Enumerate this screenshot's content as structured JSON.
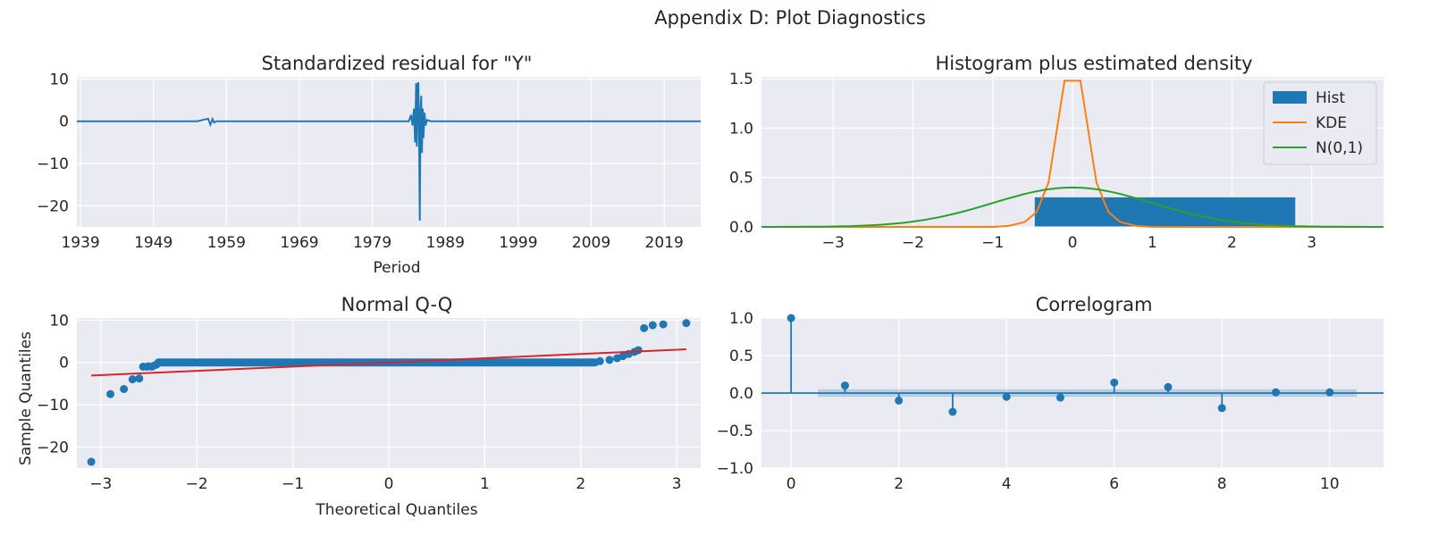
{
  "suptitle": "Appendix D: Plot Diagnostics",
  "colors": {
    "background": "#eaeaf2",
    "grid": "#ffffff",
    "blue": "#1f77b4",
    "orange": "#ff7f0e",
    "green": "#2ca02c",
    "red": "#d62728",
    "text": "#262626"
  },
  "chart_data": [
    {
      "type": "line",
      "title": "Standardized residual for \"Y\"",
      "xlabel": "Period",
      "ylabel": "",
      "xlim": [
        1938.5,
        2024
      ],
      "ylim": [
        -25,
        10.5
      ],
      "xticks": [
        1939,
        1949,
        1959,
        1969,
        1979,
        1989,
        1999,
        2009,
        2019
      ],
      "yticks": [
        10,
        0,
        -10,
        -20
      ],
      "ytick_labels": [
        "10",
        "0",
        "−10",
        "−20"
      ],
      "grid": true,
      "series": [
        {
          "x": [
            1938.5,
            1955,
            1956.5,
            1956.8,
            1957.1,
            1957.3,
            1957.6,
            1980,
            1984.0,
            1984.3,
            1984.5,
            1984.7,
            1984.85,
            1985.0,
            1985.1,
            1985.2,
            1985.3,
            1985.4,
            1985.5,
            1985.6,
            1985.7,
            1985.8,
            1985.9,
            1986.0,
            1986.15,
            1986.3,
            1986.5,
            1987,
            2024
          ],
          "y": [
            0,
            0,
            0.6,
            -0.8,
            0.5,
            -0.3,
            0,
            0,
            0,
            1.5,
            -1.0,
            3.0,
            -5.0,
            9.0,
            -6.0,
            8.5,
            9.2,
            -3.5,
            -23.5,
            2.5,
            6.0,
            -7.5,
            3.0,
            -4.0,
            2.0,
            -1.0,
            0.3,
            0,
            0
          ]
        }
      ]
    },
    {
      "type": "bar",
      "title": "Histogram plus estimated density",
      "xlim": [
        -3.9,
        3.9
      ],
      "ylim": [
        0,
        1.52
      ],
      "xticks": [
        -3,
        -2,
        -1,
        0,
        1,
        2,
        3
      ],
      "xtick_labels": [
        "−3",
        "−2",
        "−1",
        "0",
        "1",
        "2",
        "3"
      ],
      "yticks": [
        0.0,
        0.5,
        1.0,
        1.5
      ],
      "ytick_labels": [
        "0.0",
        "0.5",
        "1.0",
        "1.5"
      ],
      "grid": true,
      "legend": {
        "placement": "top-right",
        "entries": [
          "Hist",
          "KDE",
          "N(0,1)"
        ]
      },
      "hist": {
        "bins": [
          [
            -0.48,
            2.8
          ]
        ],
        "values": [
          0.305
        ]
      },
      "kde": {
        "x": [
          -3.9,
          -1.0,
          -0.8,
          -0.6,
          -0.45,
          -0.3,
          -0.1,
          0.1,
          0.3,
          0.45,
          0.6,
          0.8,
          1.0,
          3.9
        ],
        "y": [
          0.0,
          0.0,
          0.01,
          0.05,
          0.15,
          0.45,
          1.48,
          1.48,
          0.45,
          0.15,
          0.05,
          0.01,
          0.0,
          0.0
        ]
      },
      "normal": {
        "mean": 0,
        "std": 1
      }
    },
    {
      "type": "scatter",
      "title": "Normal Q-Q",
      "xlabel": "Theoretical Quantiles",
      "ylabel": "Sample Quantiles",
      "xlim": [
        -3.25,
        3.25
      ],
      "ylim": [
        -25,
        10.5
      ],
      "xticks": [
        -3,
        -2,
        -1,
        0,
        1,
        2,
        3
      ],
      "xtick_labels": [
        "−3",
        "−2",
        "−1",
        "0",
        "1",
        "2",
        "3"
      ],
      "yticks": [
        10,
        0,
        -10,
        -20
      ],
      "ytick_labels": [
        "10",
        "0",
        "−10",
        "−20"
      ],
      "grid": true,
      "points": {
        "x": [
          -3.1,
          -2.9,
          -2.76,
          -2.67,
          -2.6,
          -2.56,
          -2.52,
          -2.5,
          -2.47,
          -2.45,
          -2.42,
          2.2,
          2.3,
          2.38,
          2.44,
          2.5,
          2.56,
          2.6,
          2.66,
          2.75,
          2.86,
          3.1
        ],
        "y": [
          -23.5,
          -7.5,
          -6.3,
          -4.0,
          -3.8,
          -1.0,
          -1.0,
          -0.9,
          -1.0,
          -0.8,
          -0.5,
          0.3,
          0.6,
          1.0,
          1.5,
          2.0,
          2.5,
          2.9,
          8.1,
          8.8,
          9.0,
          9.3
        ]
      },
      "dense_band": {
        "x_from": -2.4,
        "x_to": 2.15,
        "y": 0
      },
      "fit_line": {
        "x": [
          -3.1,
          3.1
        ],
        "y": [
          -3.1,
          3.1
        ]
      }
    },
    {
      "type": "bar",
      "title": "Correlogram",
      "xlim": [
        -0.55,
        11.0
      ],
      "ylim": [
        -1.0,
        1.0
      ],
      "xticks": [
        0,
        2,
        4,
        6,
        8,
        10
      ],
      "yticks": [
        1.0,
        0.5,
        0.0,
        -0.5,
        -1.0
      ],
      "ytick_labels": [
        "1.0",
        "0.5",
        "0.0",
        "−0.5",
        "−1.0"
      ],
      "grid": true,
      "lags": [
        0,
        1,
        2,
        3,
        4,
        5,
        6,
        7,
        8,
        9,
        10
      ],
      "values": [
        1.0,
        0.1,
        -0.1,
        -0.25,
        -0.05,
        -0.06,
        0.14,
        0.08,
        -0.2,
        0.01,
        0.01
      ],
      "confidence_band": {
        "x_from": 0.5,
        "x_to": 10.5,
        "lower": -0.05,
        "upper": 0.05
      }
    }
  ]
}
